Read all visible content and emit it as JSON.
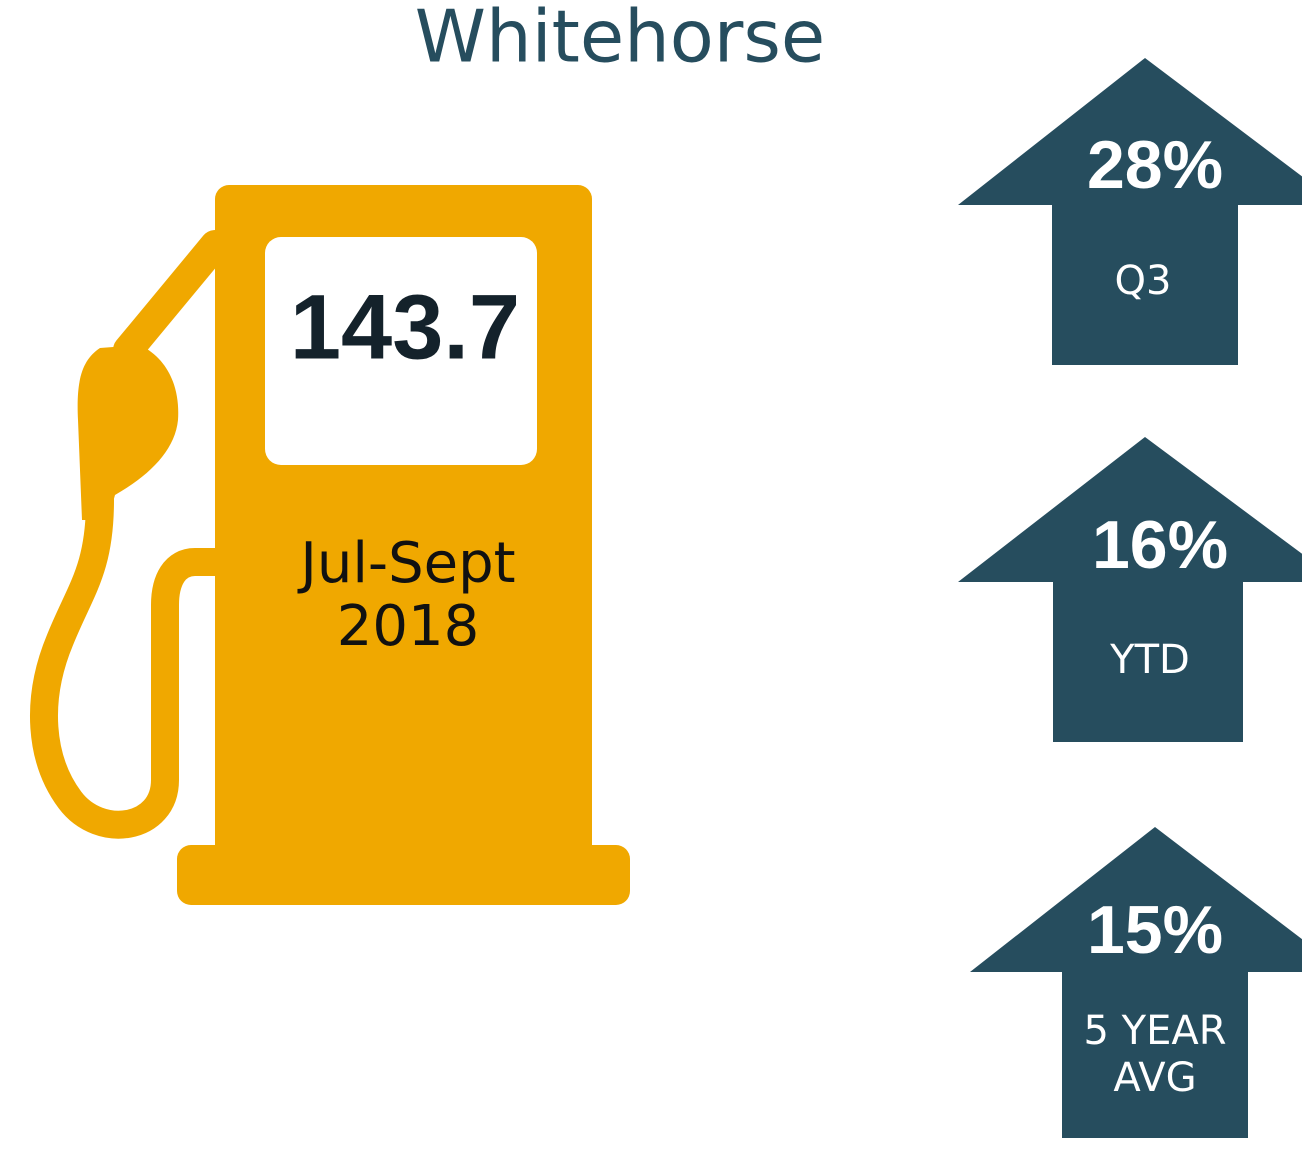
{
  "title": "Whitehorse",
  "pump": {
    "price": "143.7",
    "period": [
      "Jul-Sept",
      "2018"
    ]
  },
  "arrows": [
    {
      "value": "28%",
      "label": [
        "Q3"
      ]
    },
    {
      "value": "16%",
      "label": [
        "YTD"
      ]
    },
    {
      "value": "15%",
      "label": [
        "5 YEAR",
        "AVG"
      ]
    }
  ]
}
